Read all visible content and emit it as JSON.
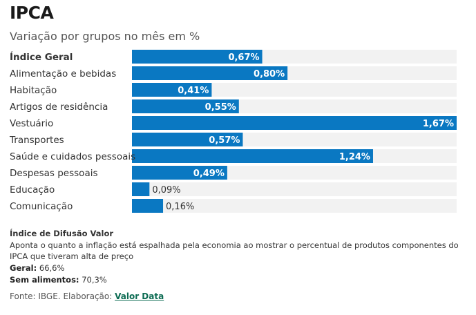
{
  "header": {
    "title": "IPCA",
    "subtitle": "Variação por grupos no mês em %"
  },
  "chart_data": {
    "type": "bar",
    "orientation": "horizontal",
    "title": "IPCA",
    "subtitle": "Variação por grupos no mês em %",
    "categories": [
      "Índice Geral",
      "Alimentação e bebidas",
      "Habitação",
      "Artigos de residência",
      "Vestuário",
      "Transportes",
      "Saúde e cuidados pessoais",
      "Despesas pessoais",
      "Educação",
      "Comunicação"
    ],
    "values": [
      0.67,
      0.8,
      0.41,
      0.55,
      1.67,
      0.57,
      1.24,
      0.49,
      0.09,
      0.16
    ],
    "value_labels": [
      "0,67%",
      "0,80%",
      "0,41%",
      "0,55%",
      "1,67%",
      "0,57%",
      "1,24%",
      "0,49%",
      "0,09%",
      "0,16%"
    ],
    "bold_category": "Índice Geral",
    "xlim": [
      0,
      1.67
    ],
    "grid": false,
    "bar_color": "#0a78c2",
    "track_color": "#f2f2f2"
  },
  "footer": {
    "note_title": "Índice de Difusão Valor",
    "note_text": "Aponta o quanto a inflação está espalhada pela economia ao mostrar o percentual de produtos componentes do IPCA que tiveram alta de preço",
    "geral_label": "Geral:",
    "geral_value": "66,6%",
    "semali_label": "Sem alimentos:",
    "semali_value": "70,3%",
    "source_prefix": "Fonte: IBGE. Elaboração:",
    "source_link": "Valor Data"
  }
}
